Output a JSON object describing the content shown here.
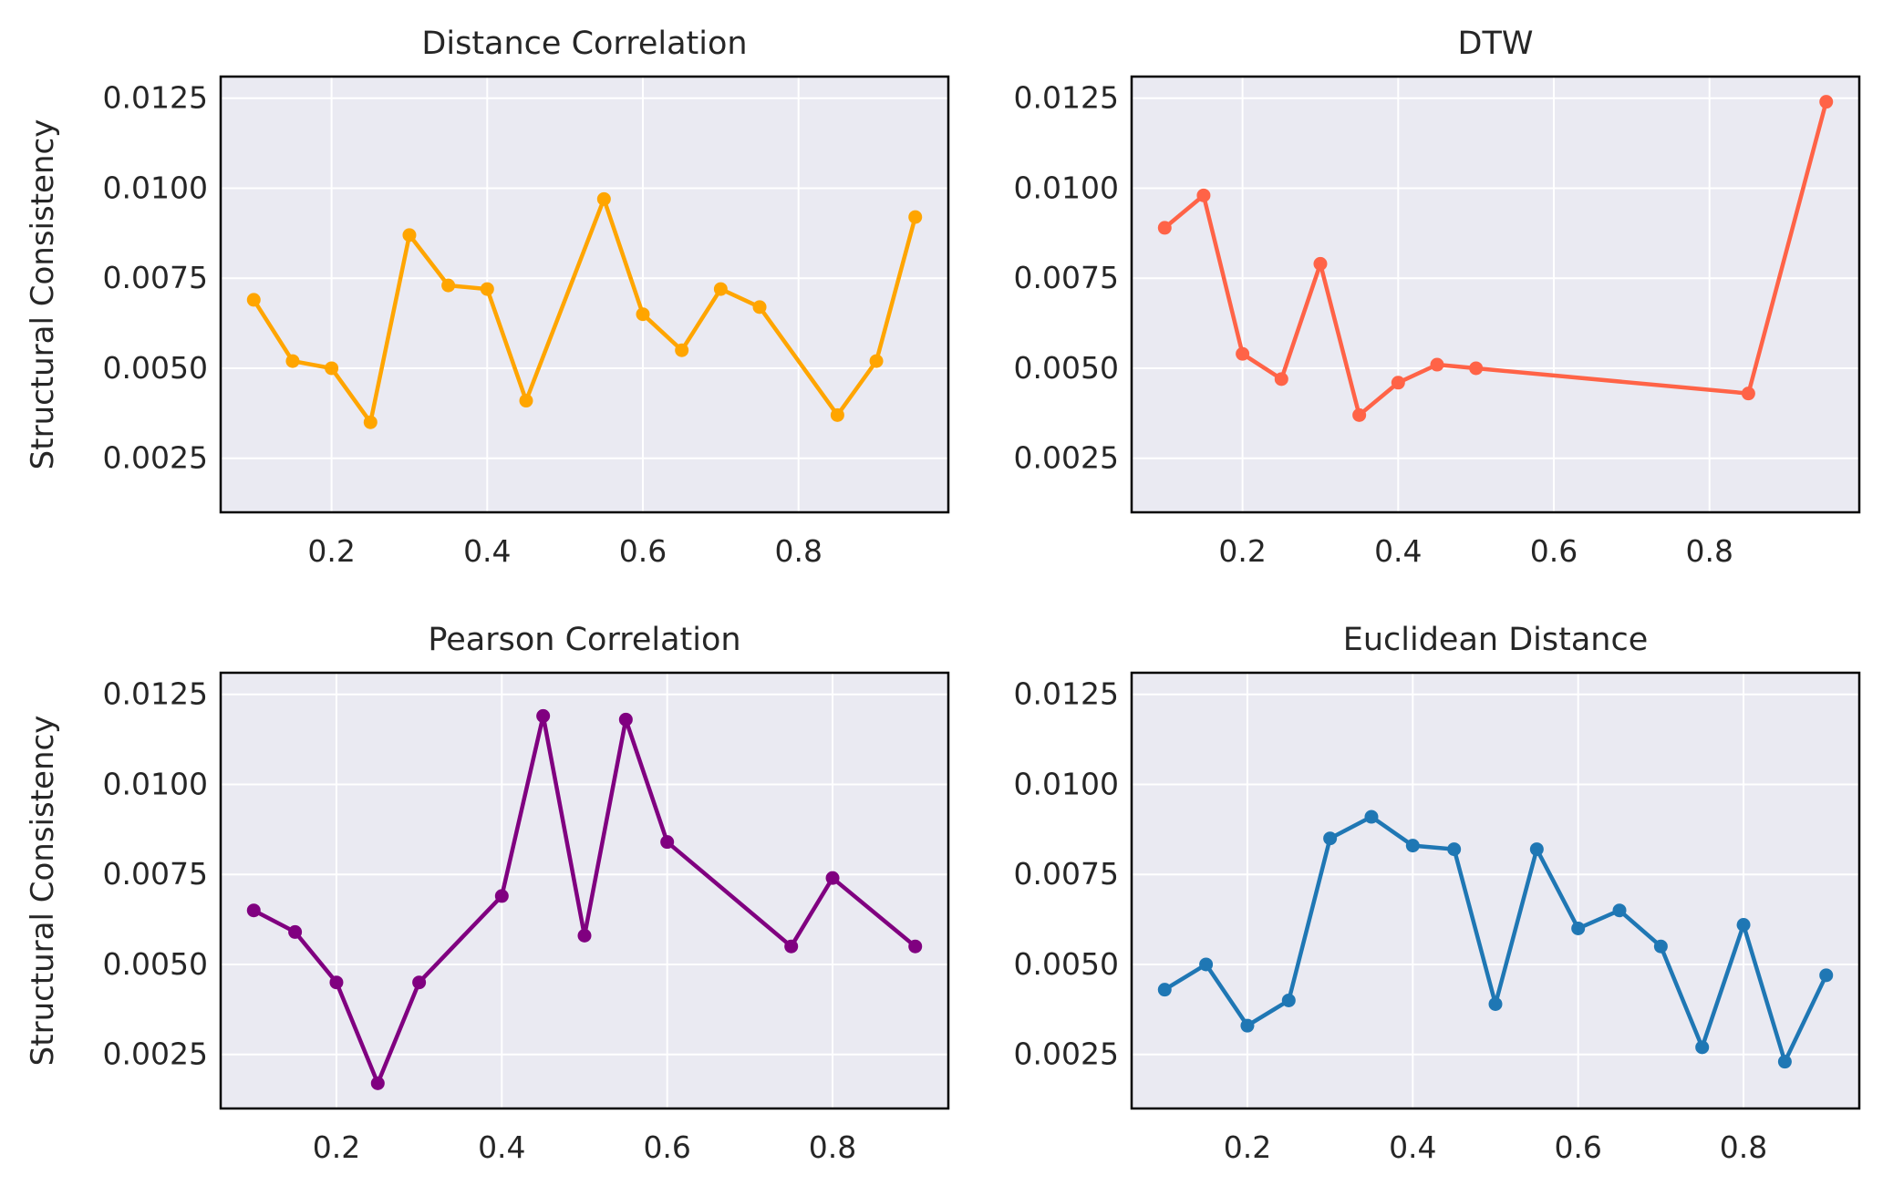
{
  "figure": {
    "ylabel": "Structural Consistency"
  },
  "chart_data": [
    {
      "type": "line",
      "title": "Distance Correlation",
      "color": "#FFA500",
      "x": [
        0.1,
        0.15,
        0.2,
        0.25,
        0.3,
        0.35,
        0.4,
        0.45,
        0.55,
        0.6,
        0.65,
        0.7,
        0.75,
        0.85,
        0.9,
        0.95
      ],
      "y": [
        0.0069,
        0.0052,
        0.005,
        0.0035,
        0.0087,
        0.0073,
        0.0072,
        0.0041,
        0.0097,
        0.0065,
        0.0055,
        0.0072,
        0.0067,
        0.0037,
        0.0052,
        0.0092
      ],
      "xticks": [
        0.2,
        0.4,
        0.6,
        0.8
      ],
      "xtick_labels": [
        "0.2",
        "0.4",
        "0.6",
        "0.8"
      ],
      "yticks": [
        0.0025,
        0.005,
        0.0075,
        0.01,
        0.0125
      ],
      "ytick_labels": [
        "0.0025",
        "0.0050",
        "0.0075",
        "0.0100",
        "0.0125"
      ],
      "xlim": [
        0.0575,
        0.9925
      ],
      "ylim": [
        0.001,
        0.0131
      ],
      "ylabel": "Structural Consistency",
      "grid": true
    },
    {
      "type": "line",
      "title": "DTW",
      "color": "#FF6347",
      "x": [
        0.1,
        0.15,
        0.2,
        0.25,
        0.3,
        0.35,
        0.4,
        0.45,
        0.5,
        0.85,
        0.95
      ],
      "y": [
        0.0089,
        0.0098,
        0.0054,
        0.0047,
        0.0079,
        0.0037,
        0.0046,
        0.0051,
        0.005,
        0.0043,
        0.0124
      ],
      "xticks": [
        0.2,
        0.4,
        0.6,
        0.8
      ],
      "xtick_labels": [
        "0.2",
        "0.4",
        "0.6",
        "0.8"
      ],
      "yticks": [
        0.0025,
        0.005,
        0.0075,
        0.01,
        0.0125
      ],
      "ytick_labels": [
        "0.0025",
        "0.0050",
        "0.0075",
        "0.0100",
        "0.0125"
      ],
      "xlim": [
        0.0575,
        0.9925
      ],
      "ylim": [
        0.001,
        0.0131
      ],
      "ylabel": "",
      "grid": true
    },
    {
      "type": "line",
      "title": "Pearson Correlation",
      "color": "#800080",
      "x": [
        0.1,
        0.15,
        0.2,
        0.25,
        0.3,
        0.4,
        0.45,
        0.5,
        0.55,
        0.6,
        0.75,
        0.8,
        0.9
      ],
      "y": [
        0.0065,
        0.0059,
        0.0045,
        0.0017,
        0.0045,
        0.0069,
        0.0119,
        0.0058,
        0.0118,
        0.0084,
        0.0055,
        0.0074,
        0.0055
      ],
      "xticks": [
        0.2,
        0.4,
        0.6,
        0.8
      ],
      "xtick_labels": [
        "0.2",
        "0.4",
        "0.6",
        "0.8"
      ],
      "yticks": [
        0.0025,
        0.005,
        0.0075,
        0.01,
        0.0125
      ],
      "ytick_labels": [
        "0.0025",
        "0.0050",
        "0.0075",
        "0.0100",
        "0.0125"
      ],
      "xlim": [
        0.06,
        0.94
      ],
      "ylim": [
        0.001,
        0.0131
      ],
      "ylabel": "Structural Consistency",
      "grid": true
    },
    {
      "type": "line",
      "title": "Euclidean Distance",
      "color": "#1F77B4",
      "x": [
        0.1,
        0.15,
        0.2,
        0.25,
        0.3,
        0.35,
        0.4,
        0.45,
        0.5,
        0.55,
        0.6,
        0.65,
        0.7,
        0.75,
        0.8,
        0.85,
        0.9
      ],
      "y": [
        0.0043,
        0.005,
        0.0033,
        0.004,
        0.0085,
        0.0091,
        0.0083,
        0.0082,
        0.0039,
        0.0082,
        0.006,
        0.0065,
        0.0055,
        0.0027,
        0.0061,
        0.0023,
        0.0047
      ],
      "xticks": [
        0.2,
        0.4,
        0.6,
        0.8
      ],
      "xtick_labels": [
        "0.2",
        "0.4",
        "0.6",
        "0.8"
      ],
      "yticks": [
        0.0025,
        0.005,
        0.0075,
        0.01,
        0.0125
      ],
      "ytick_labels": [
        "0.0025",
        "0.0050",
        "0.0075",
        "0.0100",
        "0.0125"
      ],
      "xlim": [
        0.06,
        0.94
      ],
      "ylim": [
        0.001,
        0.0131
      ],
      "ylabel": "",
      "grid": true
    }
  ]
}
